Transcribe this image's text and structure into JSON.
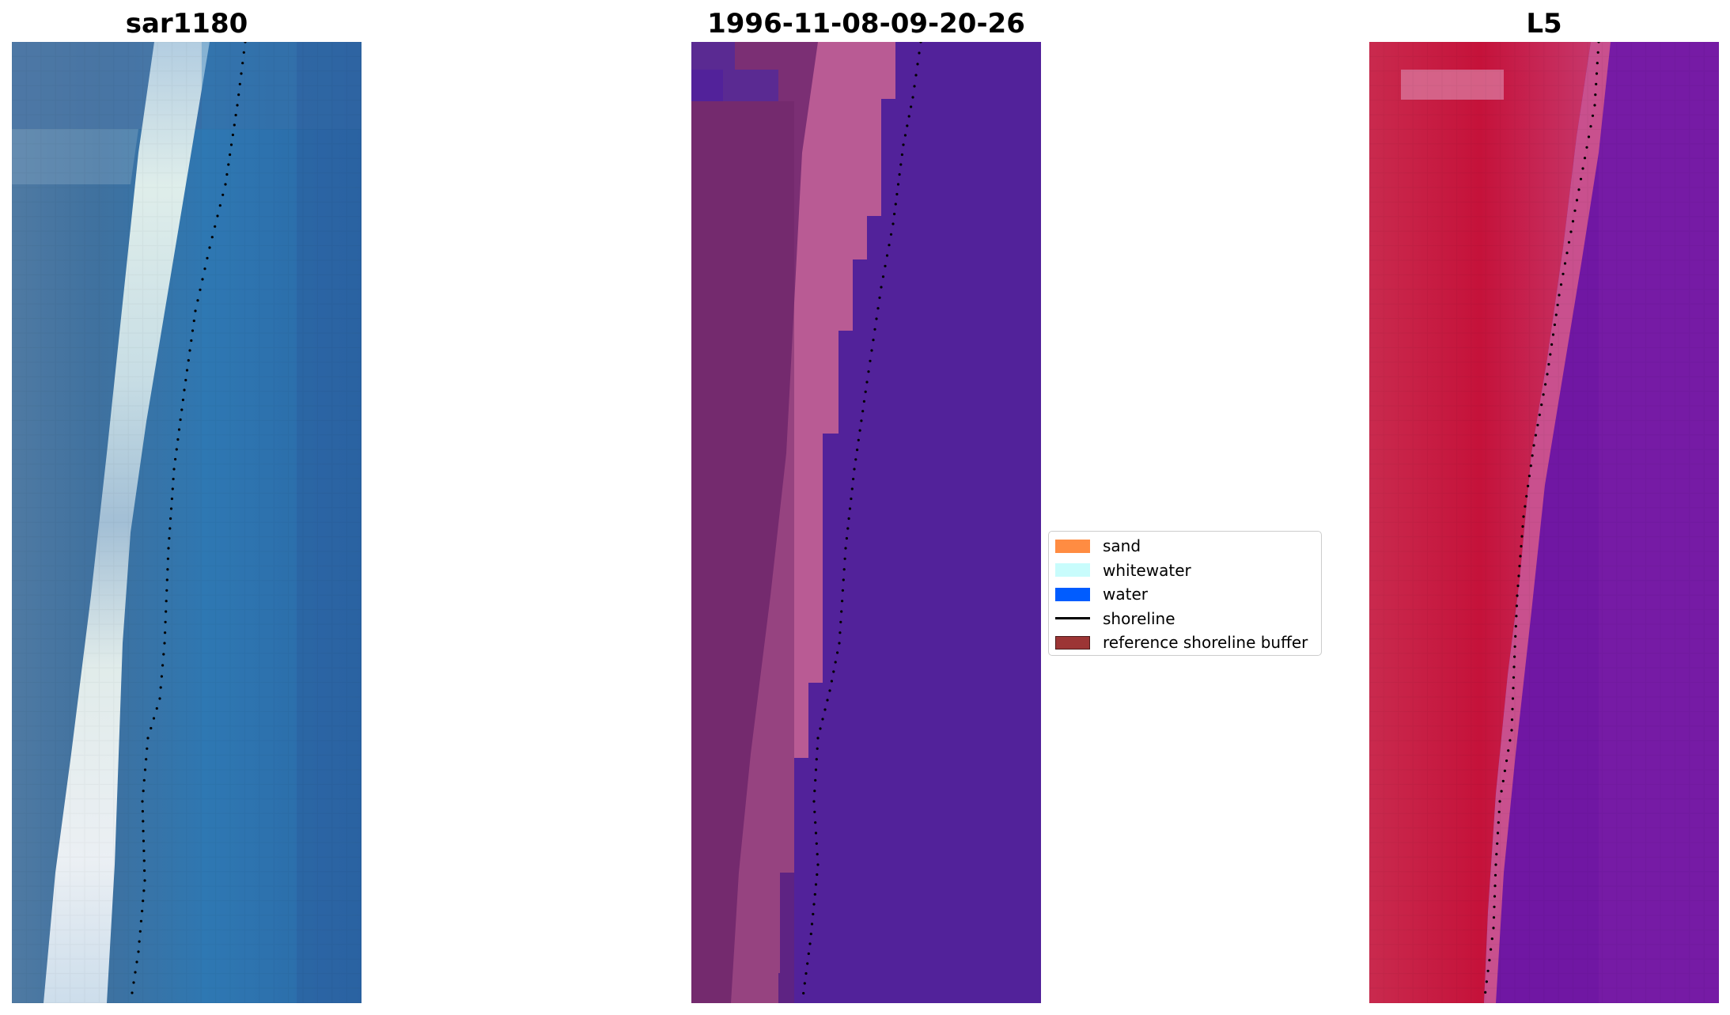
{
  "panels": [
    {
      "id": "a",
      "title": "sar1180",
      "base_color": "#2e6aa6"
    },
    {
      "id": "b",
      "title": "1996-11-08-09-20-26",
      "base_color": "#52229a"
    },
    {
      "id": "c",
      "title": "L5",
      "base_color": "#7017a3"
    }
  ],
  "legend": {
    "items": [
      {
        "label": "sand",
        "color": "#ff8c42",
        "kind": "patch"
      },
      {
        "label": "whitewater",
        "color": "#c8fcfc",
        "kind": "patch"
      },
      {
        "label": "water",
        "color": "#005cff",
        "kind": "patch"
      },
      {
        "label": "shoreline",
        "color": "#000000",
        "kind": "line"
      },
      {
        "label": "reference shoreline buffer",
        "color": "#9c3535",
        "kind": "patch"
      }
    ]
  }
}
